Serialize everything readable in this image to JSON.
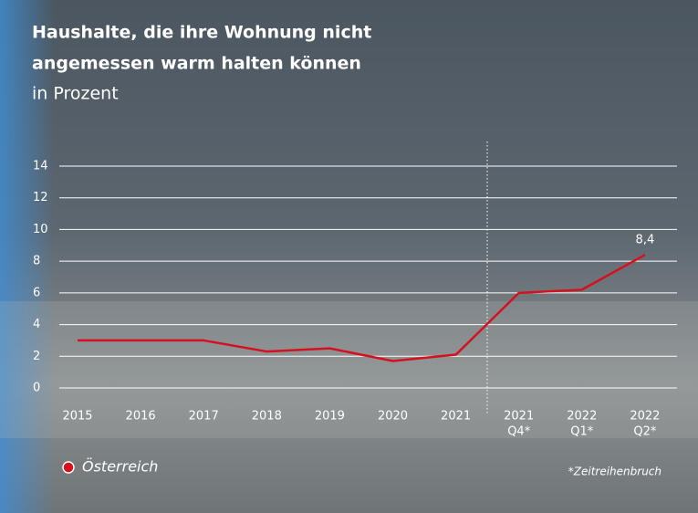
{
  "chart_data": {
    "type": "line",
    "title": [
      "Haushalte, die ihre Wohnung nicht",
      "angemessen warm halten können"
    ],
    "subtitle": "in Prozent",
    "categories": [
      [
        "2015"
      ],
      [
        "2016"
      ],
      [
        "2017"
      ],
      [
        "2018"
      ],
      [
        "2019"
      ],
      [
        "2020"
      ],
      [
        "2021"
      ],
      [
        "2021",
        "Q4*"
      ],
      [
        "2022",
        "Q1*"
      ],
      [
        "2022",
        "Q2*"
      ]
    ],
    "series": [
      {
        "name": "Österreich",
        "color": "#d7101e",
        "values": [
          3.0,
          3.0,
          3.0,
          2.3,
          2.5,
          1.7,
          2.1,
          6.0,
          6.2,
          8.4
        ],
        "value_labels": [
          null,
          null,
          null,
          null,
          null,
          null,
          null,
          null,
          null,
          "8,4"
        ]
      }
    ],
    "ylim": [
      0,
      14
    ],
    "yticks": [
      0,
      2,
      4,
      6,
      8,
      10,
      12,
      14
    ],
    "grid": true,
    "annotation": "*Zeitreihenbruch"
  }
}
